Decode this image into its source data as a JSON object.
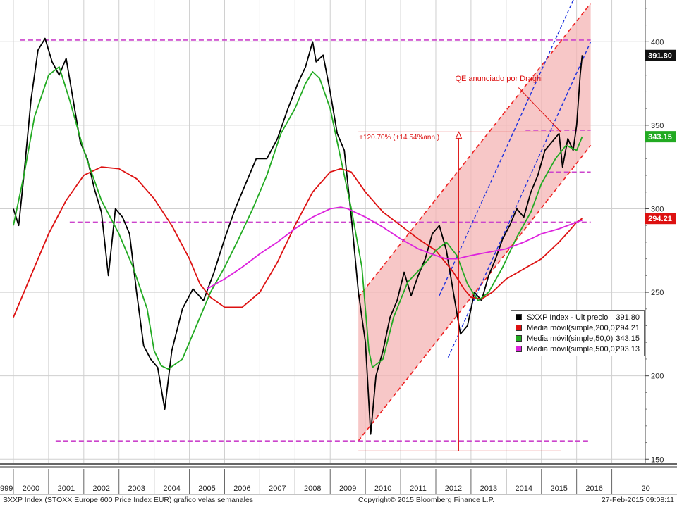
{
  "chart_data": {
    "type": "line",
    "title": "",
    "ylim": [
      148,
      425
    ],
    "y_ticks": [
      150,
      200,
      250,
      300,
      350,
      400
    ],
    "x_tick_labels": [
      "999",
      "2000",
      "2001",
      "2002",
      "2003",
      "2004",
      "2005",
      "2006",
      "2007",
      "2008",
      "2009",
      "2010",
      "2011",
      "2012",
      "2013",
      "2014",
      "2015",
      "2016",
      "20"
    ],
    "grid": true,
    "legend_position": "bottom-right",
    "series": [
      {
        "name": "SXXP Index - Últ precio",
        "color": "#000000",
        "x": [
          1999.0,
          1999.15,
          1999.3,
          1999.5,
          1999.7,
          1999.9,
          2000.1,
          2000.3,
          2000.5,
          2000.7,
          2000.9,
          2001.1,
          2001.3,
          2001.5,
          2001.7,
          2001.9,
          2002.1,
          2002.3,
          2002.5,
          2002.7,
          2002.9,
          2003.1,
          2003.3,
          2003.5,
          2003.8,
          2004.1,
          2004.4,
          2004.7,
          2005.0,
          2005.3,
          2005.6,
          2005.9,
          2006.2,
          2006.5,
          2006.8,
          2007.1,
          2007.3,
          2007.5,
          2007.6,
          2007.8,
          2008.0,
          2008.2,
          2008.4,
          2008.6,
          2008.8,
          2009.0,
          2009.15,
          2009.3,
          2009.5,
          2009.7,
          2009.9,
          2010.1,
          2010.3,
          2010.5,
          2010.7,
          2010.9,
          2011.1,
          2011.3,
          2011.5,
          2011.7,
          2011.9,
          2012.1,
          2012.3,
          2012.5,
          2012.7,
          2012.9,
          2013.1,
          2013.3,
          2013.5,
          2013.7,
          2013.9,
          2014.1,
          2014.3,
          2014.5,
          2014.6,
          2014.75,
          2014.9,
          2015.0,
          2015.1,
          2015.16
        ],
        "values": [
          300,
          290,
          320,
          365,
          395,
          402,
          388,
          380,
          390,
          365,
          340,
          330,
          312,
          298,
          260,
          300,
          295,
          285,
          250,
          218,
          210,
          205,
          180,
          215,
          240,
          252,
          245,
          262,
          282,
          300,
          315,
          330,
          330,
          342,
          360,
          376,
          385,
          400,
          388,
          392,
          370,
          345,
          335,
          295,
          250,
          220,
          165,
          200,
          215,
          235,
          245,
          262,
          248,
          260,
          270,
          285,
          290,
          275,
          250,
          225,
          230,
          250,
          245,
          260,
          270,
          282,
          290,
          300,
          295,
          310,
          320,
          335,
          340,
          345,
          325,
          342,
          335,
          350,
          380,
          392
        ]
      },
      {
        "name": "Media móvil(simple,200,0)",
        "color": "#dd1111",
        "x": [
          1999.0,
          1999.5,
          2000.0,
          2000.5,
          2001.0,
          2001.5,
          2002.0,
          2002.5,
          2003.0,
          2003.5,
          2004.0,
          2004.3,
          2004.6,
          2005.0,
          2005.5,
          2006.0,
          2006.5,
          2007.0,
          2007.5,
          2008.0,
          2008.3,
          2008.6,
          2009.0,
          2009.5,
          2010.0,
          2010.5,
          2011.0,
          2011.5,
          2011.8,
          2012.0,
          2012.3,
          2012.6,
          2013.0,
          2013.5,
          2014.0,
          2014.5,
          2014.8,
          2015.0,
          2015.16
        ],
        "values": [
          235,
          260,
          285,
          305,
          320,
          325,
          324,
          318,
          306,
          290,
          270,
          255,
          247,
          241,
          241,
          250,
          268,
          290,
          310,
          322,
          324,
          322,
          310,
          298,
          290,
          282,
          275,
          262,
          252,
          247,
          246,
          250,
          258,
          264,
          270,
          280,
          287,
          292,
          294.21
        ]
      },
      {
        "name": "Media móvil(simple,50,0)",
        "color": "#22aa22",
        "x": [
          1999.0,
          1999.3,
          1999.6,
          2000.0,
          2000.3,
          2000.6,
          2001.0,
          2001.5,
          2002.0,
          2002.4,
          2002.8,
          2003.0,
          2003.2,
          2003.4,
          2003.8,
          2004.2,
          2004.6,
          2005.0,
          2005.4,
          2005.8,
          2006.2,
          2006.6,
          2007.0,
          2007.3,
          2007.5,
          2007.7,
          2008.0,
          2008.3,
          2008.6,
          2008.9,
          2009.1,
          2009.2,
          2009.5,
          2009.8,
          2010.2,
          2010.6,
          2011.0,
          2011.3,
          2011.6,
          2011.9,
          2012.2,
          2012.5,
          2012.9,
          2013.3,
          2013.7,
          2014.0,
          2014.4,
          2014.7,
          2015.0,
          2015.16
        ],
        "values": [
          290,
          320,
          355,
          380,
          385,
          365,
          335,
          305,
          285,
          265,
          240,
          215,
          206,
          204,
          210,
          230,
          250,
          265,
          282,
          300,
          320,
          345,
          360,
          375,
          382,
          378,
          360,
          330,
          300,
          265,
          215,
          205,
          210,
          235,
          256,
          265,
          275,
          280,
          272,
          255,
          245,
          250,
          265,
          283,
          298,
          315,
          330,
          338,
          335,
          343.15
        ]
      },
      {
        "name": "Media móvil(simple,500,0)",
        "color": "#dd22dd",
        "x": [
          2004.5,
          2005.0,
          2005.5,
          2006.0,
          2006.5,
          2007.0,
          2007.5,
          2008.0,
          2008.3,
          2008.5,
          2009.0,
          2009.5,
          2010.0,
          2010.5,
          2011.0,
          2011.3,
          2011.6,
          2012.0,
          2012.5,
          2013.0,
          2013.5,
          2014.0,
          2014.5,
          2015.0,
          2015.16
        ],
        "values": [
          252,
          258,
          265,
          273,
          280,
          288,
          295,
          300,
          301,
          300,
          295,
          289,
          282,
          276,
          272,
          270,
          270,
          272,
          274,
          276,
          280,
          285,
          288,
          292,
          293.13
        ]
      }
    ],
    "legend": [
      {
        "label": "SXXP Index - Últ precio",
        "value": "391.80",
        "color": "#000000"
      },
      {
        "label": "Media móvil(simple,200,0)",
        "value": "294.21",
        "color": "#dd1111"
      },
      {
        "label": "Media móvil(simple,50,0)",
        "value": "343.15",
        "color": "#22aa22"
      },
      {
        "label": "Media móvil(simple,500,0)",
        "value": "293.13",
        "color": "#dd22dd"
      }
    ],
    "last_value_tags": [
      {
        "value": "391.80",
        "y": 391.8,
        "color": "#111111"
      },
      {
        "value": "343.15",
        "y": 343.15,
        "color": "#22aa22"
      },
      {
        "value": "294.21",
        "y": 294.21,
        "color": "#dd1111"
      }
    ],
    "horizontal_levels": [
      {
        "y": 401,
        "x_from": 1999.2,
        "x_to": 2015.4
      },
      {
        "y": 347,
        "x_from": 2013.55,
        "x_to": 2015.4
      },
      {
        "y": 322,
        "x_from": 2014.2,
        "x_to": 2015.4
      },
      {
        "y": 292,
        "x_from": 2000.6,
        "x_to": 2015.4
      },
      {
        "y": 161,
        "x_from": 2000.2,
        "x_to": 2015.4
      }
    ],
    "red_channel": {
      "lower": [
        [
          2008.8,
          161
        ],
        [
          2015.4,
          338
        ]
      ],
      "upper": [
        [
          2008.8,
          247
        ],
        [
          2015.4,
          423
        ]
      ],
      "fill": "#f4b4b4"
    },
    "blue_channel": {
      "lower": [
        [
          2011.35,
          211
        ],
        [
          2015.4,
          400
        ]
      ],
      "upper": [
        [
          2011.1,
          248
        ],
        [
          2015.4,
          448
        ]
      ]
    },
    "annotations": [
      {
        "text": "QE anunciado por Draghi",
        "x": 2011.55,
        "y": 376.5,
        "arrow_to": [
          2014.55,
          346
        ]
      },
      {
        "text": "+120.70% (+14.54%ann.)",
        "x": 2008.82,
        "y": 341.5,
        "base_y": 155,
        "top_y": 346,
        "x_start": 2008.8,
        "x_mid": 2011.65,
        "x_end": 2014.55
      }
    ],
    "colors": {
      "background": "#ffffff",
      "grid": "#cfcfcf",
      "level": "#cc44cc",
      "channel": "#ee2222",
      "trend": "#1f33dd"
    }
  },
  "footer": {
    "left": "SXXP Index (STOXX Europe 600 Price Index EUR) grafico velas semanales",
    "center": "Copyright© 2015 Bloomberg Finance L.P.",
    "right": "27-Feb-2015 09:08:11"
  }
}
